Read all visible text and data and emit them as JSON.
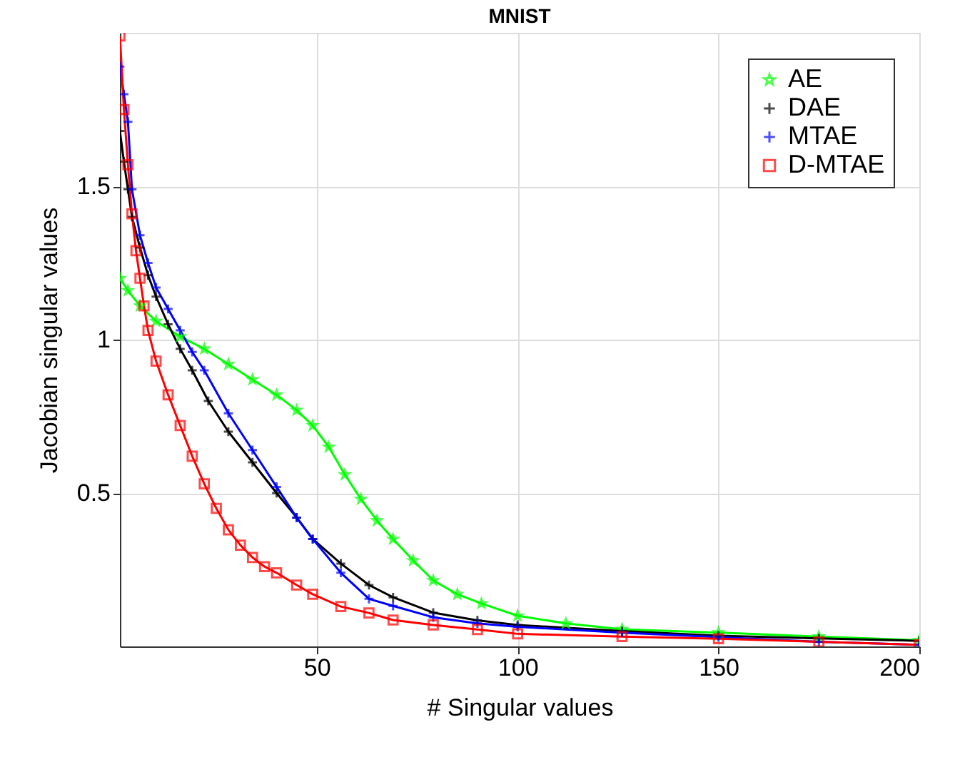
{
  "chart_data": {
    "type": "line",
    "title": "MNIST",
    "xlabel": "# Singular values",
    "ylabel": "Jacobian singular values",
    "xlim": [
      1,
      200
    ],
    "ylim": [
      0,
      2
    ],
    "xticks": [
      50,
      100,
      150,
      200
    ],
    "yticks": [
      0.5,
      1,
      1.5
    ],
    "grid": true,
    "legend": "top right",
    "line_style": "solid",
    "series": [
      {
        "name": "AE",
        "color": "#00ff00",
        "marker": "star",
        "x": [
          1,
          3,
          6,
          10,
          16,
          22,
          28,
          34,
          40,
          45,
          49,
          53,
          57,
          61,
          65,
          69,
          74,
          79,
          85,
          91,
          100,
          112,
          126,
          150,
          175,
          200
        ],
        "values": [
          1.2,
          1.16,
          1.11,
          1.06,
          1.01,
          0.97,
          0.92,
          0.87,
          0.82,
          0.77,
          0.72,
          0.65,
          0.56,
          0.48,
          0.41,
          0.35,
          0.28,
          0.215,
          0.17,
          0.14,
          0.1,
          0.075,
          0.056,
          0.045,
          0.032,
          0.02
        ]
      },
      {
        "name": "DAE",
        "color": "#000000",
        "marker": "cross",
        "x": [
          1,
          2,
          3,
          4,
          6,
          8,
          10,
          13,
          16,
          19,
          23,
          28,
          34,
          40,
          45,
          49,
          56,
          63,
          69,
          79,
          90,
          100,
          126,
          150,
          175,
          200
        ],
        "values": [
          1.68,
          1.58,
          1.49,
          1.4,
          1.3,
          1.21,
          1.14,
          1.05,
          0.97,
          0.9,
          0.8,
          0.7,
          0.6,
          0.5,
          0.42,
          0.35,
          0.27,
          0.2,
          0.16,
          0.11,
          0.085,
          0.07,
          0.05,
          0.035,
          0.026,
          0.018
        ]
      },
      {
        "name": "MTAE",
        "color": "#0000ff",
        "marker": "cross",
        "x": [
          1,
          2,
          3,
          4,
          6,
          8,
          10,
          13,
          16,
          19,
          22,
          28,
          34,
          40,
          45,
          49,
          56,
          63,
          69,
          79,
          90,
          100,
          126,
          150,
          175,
          200
        ],
        "values": [
          1.89,
          1.8,
          1.71,
          1.49,
          1.34,
          1.25,
          1.17,
          1.1,
          1.03,
          0.96,
          0.9,
          0.76,
          0.64,
          0.52,
          0.42,
          0.35,
          0.24,
          0.155,
          0.132,
          0.095,
          0.075,
          0.064,
          0.045,
          0.03,
          0.015,
          0.005
        ]
      },
      {
        "name": "D-MTAE",
        "color": "#ff0000",
        "marker": "square",
        "x": [
          1,
          2,
          3,
          4,
          5,
          6,
          7,
          8,
          10,
          13,
          16,
          19,
          22,
          25,
          28,
          31,
          34,
          37,
          40,
          45,
          49,
          56,
          63,
          69,
          79,
          90,
          100,
          126,
          150,
          175,
          200
        ],
        "values": [
          1.99,
          1.75,
          1.57,
          1.41,
          1.29,
          1.2,
          1.11,
          1.03,
          0.93,
          0.82,
          0.72,
          0.62,
          0.53,
          0.45,
          0.38,
          0.33,
          0.29,
          0.26,
          0.24,
          0.2,
          0.17,
          0.13,
          0.109,
          0.086,
          0.07,
          0.055,
          0.041,
          0.032,
          0.025,
          0.015,
          0.005
        ]
      }
    ]
  }
}
